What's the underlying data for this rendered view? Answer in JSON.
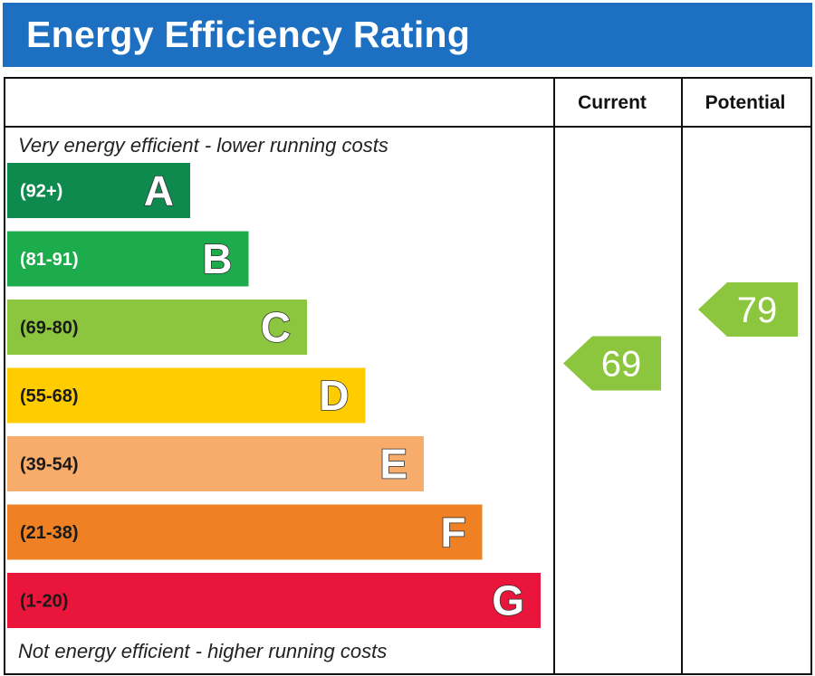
{
  "title": "Energy Efficiency Rating",
  "chart_data": {
    "type": "bar",
    "title": "Energy Efficiency Rating",
    "top_note": "Very energy efficient - lower running costs",
    "bottom_note": "Not energy efficient - higher running costs",
    "columns": [
      "Current",
      "Potential"
    ],
    "bands": [
      {
        "letter": "A",
        "range": "(92+)",
        "min": 92,
        "max": 100,
        "color": "#0f8a4f",
        "text_color": "#ffffff"
      },
      {
        "letter": "B",
        "range": "(81-91)",
        "min": 81,
        "max": 91,
        "color": "#1cac4b",
        "text_color": "#ffffff"
      },
      {
        "letter": "C",
        "range": "(69-80)",
        "min": 69,
        "max": 80,
        "color": "#8cc63f",
        "text_color": "#1a1a1a"
      },
      {
        "letter": "D",
        "range": "(55-68)",
        "min": 55,
        "max": 68,
        "color": "#ffcc00",
        "text_color": "#1a1a1a"
      },
      {
        "letter": "E",
        "range": "(39-54)",
        "min": 39,
        "max": 54,
        "color": "#f7ac6b",
        "text_color": "#1a1a1a"
      },
      {
        "letter": "F",
        "range": "(21-38)",
        "min": 21,
        "max": 38,
        "color": "#ef8023",
        "text_color": "#1a1a1a"
      },
      {
        "letter": "G",
        "range": "(1-20)",
        "min": 1,
        "max": 20,
        "color": "#e9153b",
        "text_color": "#1a1a1a"
      }
    ],
    "current": {
      "value": 69,
      "band": "C",
      "color": "#8cc63f"
    },
    "potential": {
      "value": 79,
      "band": "C",
      "color": "#8cc63f"
    }
  }
}
